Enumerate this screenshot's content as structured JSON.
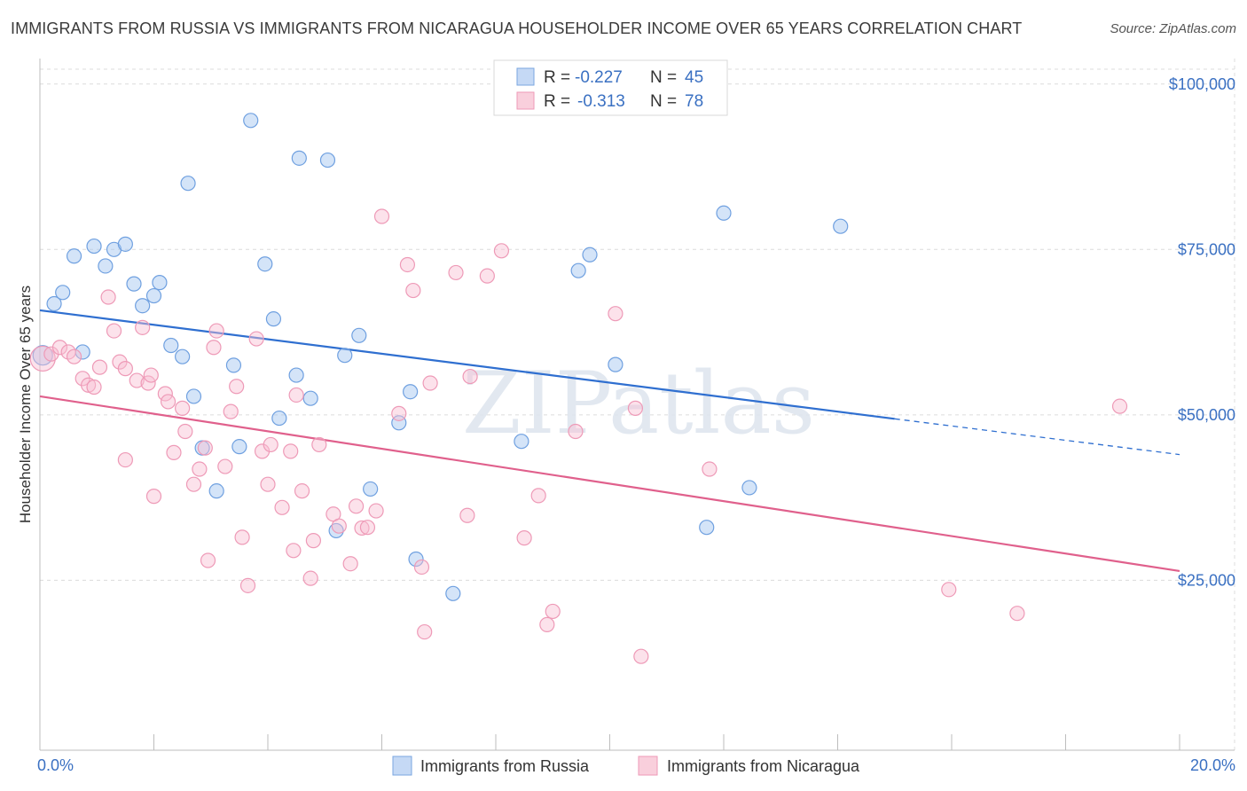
{
  "title": "IMMIGRANTS FROM RUSSIA VS IMMIGRANTS FROM NICARAGUA HOUSEHOLDER INCOME OVER 65 YEARS CORRELATION CHART",
  "source": "Source: ZipAtlas.com",
  "watermark": "ZIPatlas",
  "chart_data": {
    "type": "scatter",
    "title": "IMMIGRANTS FROM RUSSIA VS IMMIGRANTS FROM NICARAGUA HOUSEHOLDER INCOME OVER 65 YEARS CORRELATION CHART",
    "xlabel": "",
    "ylabel": "Householder Income Over 65 years",
    "xlim": [
      0,
      20
    ],
    "ylim": [
      2000,
      106000
    ],
    "x_tick_labels": [
      "0.0%",
      "20.0%"
    ],
    "y_ticks": [
      25000,
      50000,
      75000,
      100000
    ],
    "y_tick_labels": [
      "$25,000",
      "$50,000",
      "$75,000",
      "$100,000"
    ],
    "grid": true,
    "legend_position": "top-center",
    "series": [
      {
        "name": "Immigrants from Russia",
        "color": "#6fa0e0",
        "r": "-0.227",
        "n": "45",
        "trend": {
          "x0": 0,
          "y0": 65800,
          "x1": 15,
          "y1": 49400,
          "dash_to_x": 20,
          "dash_to_y": 44000
        },
        "points": [
          [
            0.05,
            59000
          ],
          [
            0.25,
            66800
          ],
          [
            0.4,
            68500
          ],
          [
            0.6,
            74000
          ],
          [
            0.75,
            59500
          ],
          [
            0.95,
            75500
          ],
          [
            1.15,
            72500
          ],
          [
            1.3,
            75000
          ],
          [
            1.5,
            75800
          ],
          [
            1.65,
            69800
          ],
          [
            1.8,
            66500
          ],
          [
            2.0,
            68000
          ],
          [
            2.1,
            70000
          ],
          [
            2.3,
            60500
          ],
          [
            2.5,
            58800
          ],
          [
            2.6,
            85000
          ],
          [
            2.7,
            52800
          ],
          [
            2.85,
            45000
          ],
          [
            3.1,
            38500
          ],
          [
            3.4,
            57500
          ],
          [
            3.5,
            45200
          ],
          [
            3.7,
            94500
          ],
          [
            3.95,
            72800
          ],
          [
            4.1,
            64500
          ],
          [
            4.2,
            49500
          ],
          [
            4.5,
            56000
          ],
          [
            4.55,
            88800
          ],
          [
            4.75,
            52500
          ],
          [
            5.05,
            88500
          ],
          [
            5.2,
            32500
          ],
          [
            5.35,
            59000
          ],
          [
            5.6,
            62000
          ],
          [
            5.8,
            38800
          ],
          [
            6.3,
            48800
          ],
          [
            6.5,
            53500
          ],
          [
            6.6,
            28200
          ],
          [
            7.25,
            23000
          ],
          [
            8.45,
            46000
          ],
          [
            9.45,
            71800
          ],
          [
            9.65,
            74200
          ],
          [
            10.1,
            57600
          ],
          [
            11.7,
            33000
          ],
          [
            12.0,
            80500
          ],
          [
            12.45,
            39000
          ],
          [
            14.05,
            78500
          ]
        ]
      },
      {
        "name": "Immigrants from Nicaragua",
        "color": "#f0a0bc",
        "r": "-0.313",
        "n": "78",
        "trend": {
          "x0": 0,
          "y0": 52800,
          "x1": 20,
          "y1": 26400
        },
        "points": [
          [
            0.05,
            58500
          ],
          [
            0.2,
            59200
          ],
          [
            0.35,
            60200
          ],
          [
            0.5,
            59500
          ],
          [
            0.6,
            58800
          ],
          [
            0.75,
            55500
          ],
          [
            0.85,
            54500
          ],
          [
            0.95,
            54200
          ],
          [
            1.05,
            57200
          ],
          [
            1.2,
            67800
          ],
          [
            1.3,
            62700
          ],
          [
            1.4,
            58000
          ],
          [
            1.5,
            57000
          ],
          [
            1.5,
            43200
          ],
          [
            1.7,
            55200
          ],
          [
            1.8,
            63200
          ],
          [
            1.9,
            54800
          ],
          [
            1.95,
            56000
          ],
          [
            2.0,
            37700
          ],
          [
            2.2,
            53200
          ],
          [
            2.25,
            52000
          ],
          [
            2.35,
            44300
          ],
          [
            2.5,
            51000
          ],
          [
            2.55,
            47500
          ],
          [
            2.7,
            39500
          ],
          [
            2.8,
            41800
          ],
          [
            2.9,
            45000
          ],
          [
            2.95,
            28000
          ],
          [
            3.05,
            60200
          ],
          [
            3.1,
            62700
          ],
          [
            3.25,
            42200
          ],
          [
            3.35,
            50500
          ],
          [
            3.45,
            54300
          ],
          [
            3.55,
            31500
          ],
          [
            3.65,
            24200
          ],
          [
            3.8,
            61500
          ],
          [
            3.9,
            44500
          ],
          [
            4.0,
            39500
          ],
          [
            4.05,
            45500
          ],
          [
            4.25,
            36000
          ],
          [
            4.4,
            44500
          ],
          [
            4.45,
            29500
          ],
          [
            4.5,
            53000
          ],
          [
            4.6,
            38500
          ],
          [
            4.75,
            25300
          ],
          [
            4.8,
            31000
          ],
          [
            4.9,
            45500
          ],
          [
            5.15,
            35000
          ],
          [
            5.25,
            33200
          ],
          [
            5.45,
            27500
          ],
          [
            5.55,
            36200
          ],
          [
            5.65,
            32900
          ],
          [
            5.75,
            33000
          ],
          [
            5.9,
            35500
          ],
          [
            6.0,
            80000
          ],
          [
            6.3,
            50200
          ],
          [
            6.45,
            72700
          ],
          [
            6.55,
            68800
          ],
          [
            6.7,
            27000
          ],
          [
            6.75,
            17200
          ],
          [
            6.85,
            54800
          ],
          [
            7.3,
            71500
          ],
          [
            7.5,
            34800
          ],
          [
            7.55,
            55800
          ],
          [
            7.85,
            71000
          ],
          [
            8.1,
            74800
          ],
          [
            8.5,
            31400
          ],
          [
            8.75,
            37800
          ],
          [
            8.9,
            18300
          ],
          [
            9.0,
            20300
          ],
          [
            9.4,
            47500
          ],
          [
            10.1,
            65300
          ],
          [
            10.45,
            51000
          ],
          [
            10.55,
            13500
          ],
          [
            11.75,
            41800
          ],
          [
            15.95,
            23600
          ],
          [
            17.15,
            20000
          ],
          [
            18.95,
            51300
          ]
        ]
      }
    ]
  },
  "legend": {
    "r_label": "R =",
    "n_label": "N ="
  }
}
